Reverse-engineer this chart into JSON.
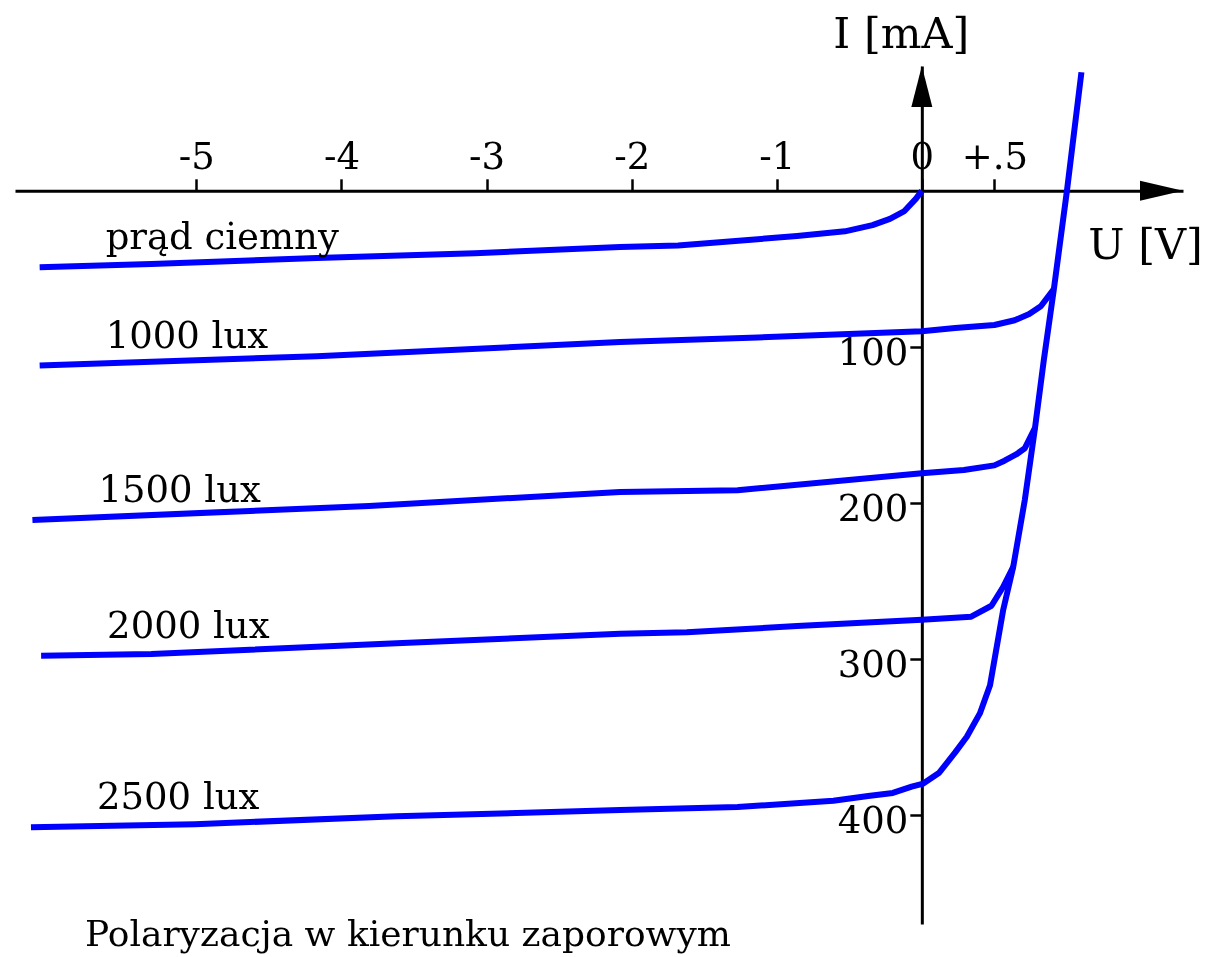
{
  "chart_data": {
    "type": "line",
    "xlabel": "U [V]",
    "ylabel": "I [mA]",
    "annotations": [
      "Polaryzacja w kierunku zaporowym"
    ],
    "xlim": [
      -6.25,
      1.8
    ],
    "ylim": [
      470,
      -80
    ],
    "xticks": [
      -5,
      -4,
      -3,
      -2,
      -1,
      0,
      {
        "value": 0.5,
        "label": "+.5"
      }
    ],
    "yticks": [
      100,
      200,
      300,
      400
    ],
    "series": [
      {
        "name": "prąd ciemny",
        "color": "#0000ff",
        "x": [
          -6.08,
          -5.31,
          -4.17,
          -3.08,
          -2.08,
          -1.68,
          -0.86,
          -0.53,
          -0.34,
          -0.22,
          -0.12,
          -0.04,
          0
        ],
        "values": [
          49,
          47,
          43,
          40,
          36,
          35,
          29,
          26,
          22,
          18,
          13,
          5,
          0
        ]
      },
      {
        "name": "1000 lux",
        "color": "#0000ff",
        "x": [
          -6.08,
          -4.17,
          -2.08,
          -1.13,
          0,
          0.23,
          0.5,
          0.64,
          0.74,
          0.82,
          0.91
        ],
        "values": [
          112,
          106,
          97,
          94,
          90,
          88,
          86,
          83,
          79,
          74,
          63
        ]
      },
      {
        "name": "1500 lux",
        "color": "#0000ff",
        "x": [
          -6.13,
          -3.81,
          -2.08,
          -1.27,
          0,
          0.29,
          0.5,
          0.57,
          0.65,
          0.71,
          0.78
        ],
        "values": [
          211,
          202,
          193,
          192,
          181,
          179,
          176,
          173,
          169,
          165,
          152
        ]
      },
      {
        "name": "2000 lux",
        "color": "#0000ff",
        "x": [
          -6.07,
          -5.31,
          -3.62,
          -2.08,
          -1.62,
          -0.86,
          0,
          0.34,
          0.48,
          0.56,
          0.63
        ],
        "values": [
          298,
          297,
          290,
          284,
          283,
          279,
          275,
          273,
          266,
          254,
          241
        ]
      },
      {
        "name": "2500 lux",
        "color": "#0000ff",
        "x": [
          -6.14,
          -5.01,
          -3.62,
          -2.08,
          -1.27,
          -0.61,
          -0.37,
          -0.2,
          -0.07,
          0.01,
          0.12,
          0.23,
          0.31,
          0.4,
          0.47,
          0.56,
          0.63,
          0.71,
          0.78,
          0.84,
          0.91,
          1.0,
          1.1
        ],
        "values": [
          408,
          406,
          401,
          397,
          395,
          391,
          388,
          386,
          382,
          380,
          373,
          360,
          350,
          335,
          317,
          269,
          241,
          198,
          152,
          109,
          63,
          0,
          -76
        ]
      }
    ]
  }
}
